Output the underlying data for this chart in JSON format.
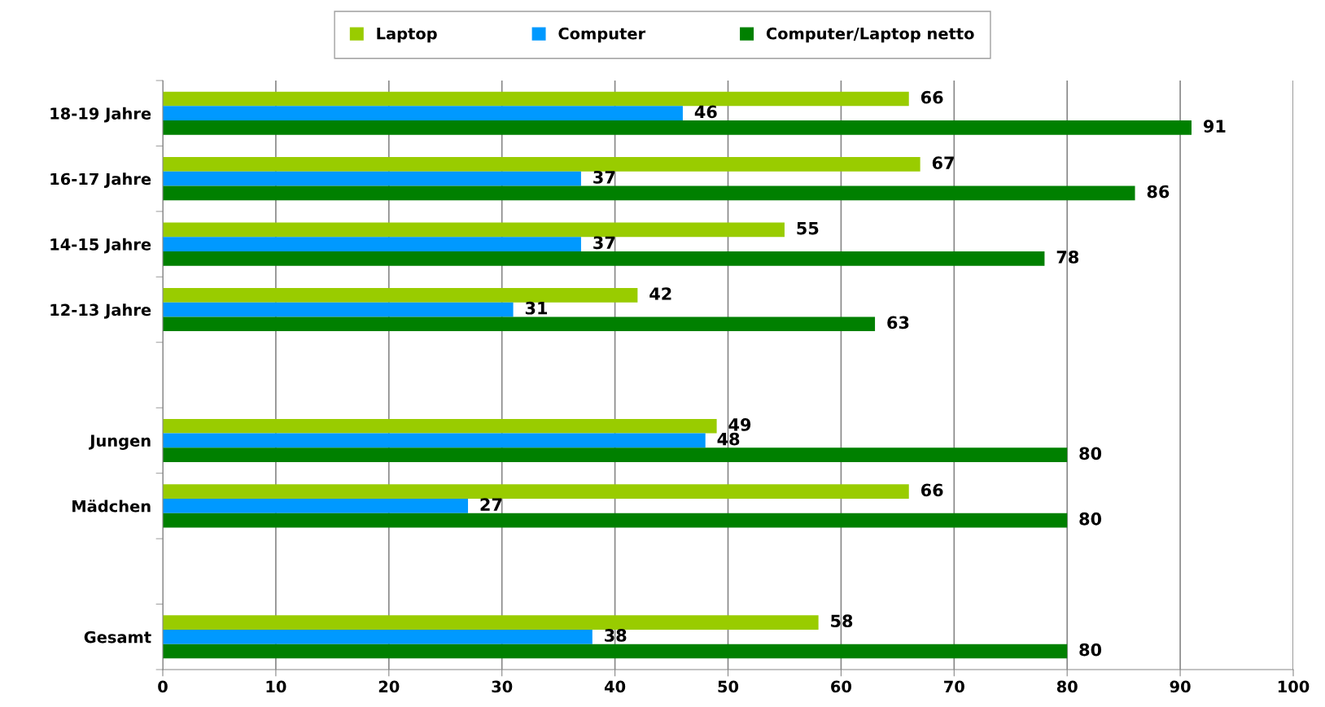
{
  "chart_data": {
    "type": "bar",
    "orientation": "horizontal",
    "categories": [
      "18-19 Jahre",
      "16-17 Jahre",
      "14-15 Jahre",
      "12-13 Jahre",
      null,
      "Jungen",
      "Mädchen",
      null,
      "Gesamt"
    ],
    "series": [
      {
        "name": "Laptop",
        "color": "#99cc00",
        "values": [
          66,
          67,
          55,
          42,
          null,
          49,
          66,
          null,
          58
        ]
      },
      {
        "name": "Computer",
        "color": "#0099ff",
        "values": [
          46,
          37,
          37,
          31,
          null,
          48,
          27,
          null,
          38
        ]
      },
      {
        "name": "Computer/Laptop netto",
        "color": "#008000",
        "values": [
          91,
          86,
          78,
          63,
          null,
          80,
          80,
          null,
          80
        ]
      }
    ],
    "xlim": [
      0,
      100
    ],
    "xticks": [
      0,
      10,
      20,
      30,
      40,
      50,
      60,
      70,
      80,
      90,
      100
    ],
    "grid": "x",
    "legend": "top",
    "data_labels": true
  }
}
